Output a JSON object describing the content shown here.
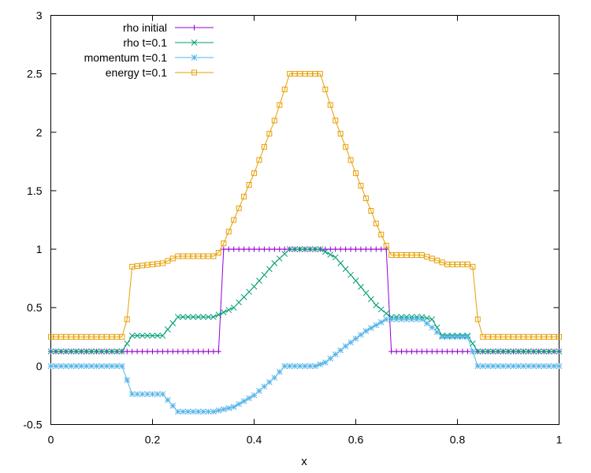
{
  "chart_data": {
    "type": "line",
    "title": "",
    "xlabel": "x",
    "ylabel": "",
    "xlim": [
      0,
      1
    ],
    "ylim": [
      -0.5,
      3
    ],
    "x_ticks": [
      0,
      0.2,
      0.4,
      0.6,
      0.8,
      1
    ],
    "x_tick_labels": [
      "0",
      "0.2",
      "0.4",
      "0.6",
      "0.8",
      "1"
    ],
    "y_ticks": [
      -0.5,
      0,
      0.5,
      1,
      1.5,
      2,
      2.5,
      3
    ],
    "y_tick_labels": [
      "-0.5",
      "0",
      "0.5",
      "1",
      "1.5",
      "2",
      "2.5",
      "3"
    ],
    "grid": false,
    "legend_position": "top-left",
    "series": [
      {
        "name": "rho initial",
        "color": "#9400d3",
        "marker": "plus",
        "x": [
          0,
          0.33,
          0.34,
          0.66,
          0.67,
          1
        ],
        "y": [
          0.125,
          0.125,
          1,
          1,
          0.125,
          0.125
        ]
      },
      {
        "name": "rho t=0.1",
        "color": "#009e73",
        "marker": "cross",
        "x": [
          0,
          0.14,
          0.16,
          0.22,
          0.25,
          0.32,
          0.36,
          0.4,
          0.44,
          0.47,
          0.53,
          0.56,
          0.6,
          0.64,
          0.66,
          0.67,
          0.73,
          0.75,
          0.77,
          0.82,
          0.84,
          1
        ],
        "y": [
          0.125,
          0.125,
          0.26,
          0.26,
          0.42,
          0.42,
          0.5,
          0.68,
          0.88,
          1,
          1,
          0.93,
          0.73,
          0.52,
          0.45,
          0.42,
          0.42,
          0.4,
          0.26,
          0.26,
          0.125,
          0.125
        ]
      },
      {
        "name": "momentum t=0.1",
        "color": "#56b4e9",
        "marker": "star",
        "x": [
          0,
          0.14,
          0.16,
          0.22,
          0.25,
          0.32,
          0.36,
          0.4,
          0.44,
          0.46,
          0.52,
          0.54,
          0.58,
          0.62,
          0.66,
          0.73,
          0.75,
          0.77,
          0.82,
          0.84,
          1
        ],
        "y": [
          0,
          0,
          -0.24,
          -0.24,
          -0.39,
          -0.39,
          -0.35,
          -0.25,
          -0.1,
          0,
          0,
          0.03,
          0.17,
          0.3,
          0.4,
          0.4,
          0.33,
          0.25,
          0.25,
          0,
          0
        ]
      },
      {
        "name": "energy t=0.1",
        "color": "#e69f00",
        "marker": "square",
        "x": [
          0,
          0.14,
          0.15,
          0.16,
          0.22,
          0.25,
          0.32,
          0.33,
          0.34,
          0.36,
          0.4,
          0.44,
          0.47,
          0.53,
          0.56,
          0.6,
          0.64,
          0.66,
          0.67,
          0.73,
          0.75,
          0.78,
          0.82,
          0.83,
          0.84,
          0.85,
          1
        ],
        "y": [
          0.25,
          0.25,
          0.4,
          0.85,
          0.88,
          0.94,
          0.94,
          0.97,
          1.05,
          1.25,
          1.65,
          2.1,
          2.5,
          2.5,
          2.1,
          1.65,
          1.22,
          1.03,
          0.95,
          0.95,
          0.92,
          0.87,
          0.87,
          0.85,
          0.4,
          0.25,
          0.25
        ]
      }
    ]
  }
}
